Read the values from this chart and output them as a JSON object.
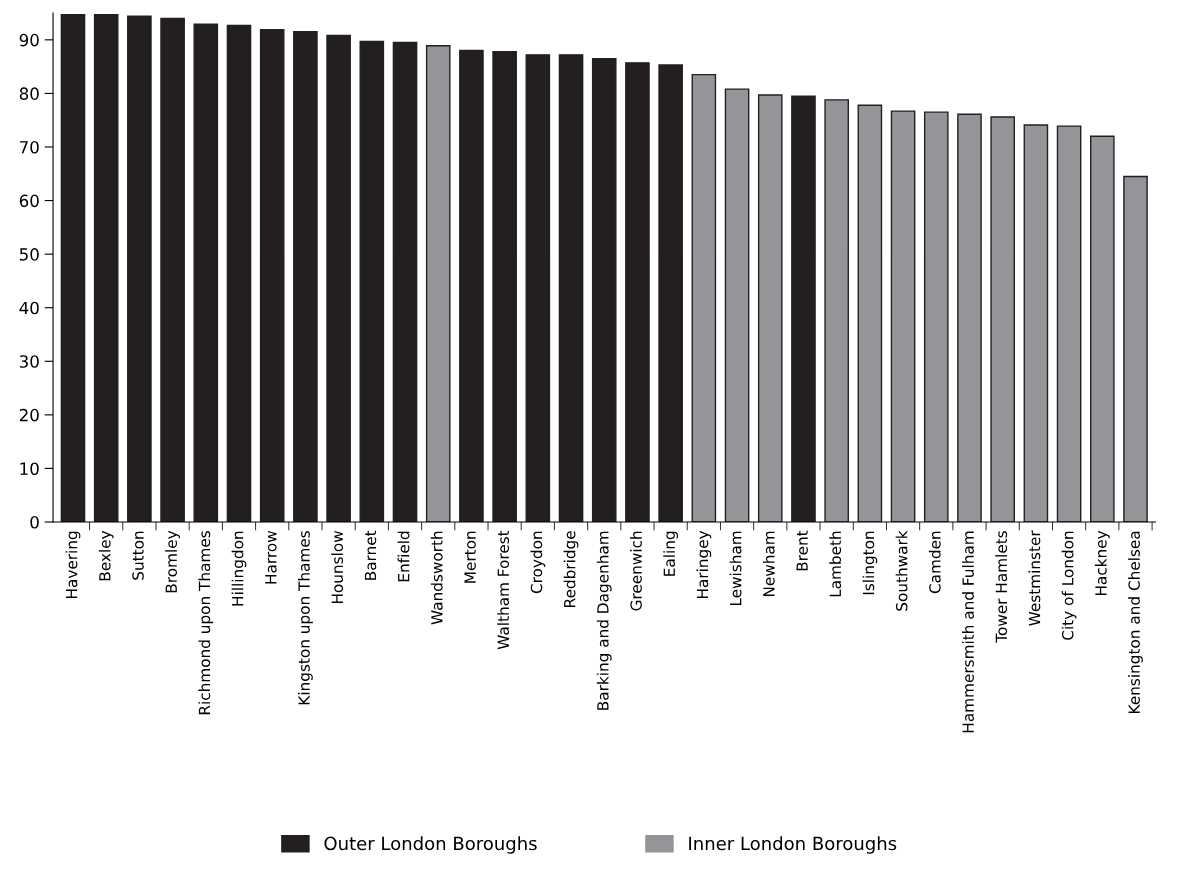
{
  "chart_data": {
    "type": "bar",
    "stacked": true,
    "categories": [
      "Havering",
      "Bexley",
      "Sutton",
      "Bromley",
      "Richmond upon Thames",
      "Hillingdon",
      "Harrow",
      "Kingston upon Thames",
      "Hounslow",
      "Barnet",
      "Enfield",
      "Wandsworth",
      "Merton",
      "Waltham Forest",
      "Croydon",
      "Redbridge",
      "Barking and Dagenham",
      "Greenwich",
      "Ealing",
      "Haringey",
      "Lewisham",
      "Newham",
      "Brent",
      "Lambeth",
      "Islington",
      "Southwark",
      "Camden",
      "Hammersmith and Fulham",
      "Tower Hamlets",
      "Westminster",
      "City of London",
      "Hackney",
      "Kensington and Chelsea"
    ],
    "series": [
      {
        "name": "Outer London Boroughs",
        "color": "#231f20",
        "values": [
          94.7,
          94.7,
          94.4,
          94.0,
          92.9,
          92.7,
          91.9,
          91.5,
          90.8,
          89.7,
          89.5,
          null,
          88.0,
          87.8,
          87.2,
          87.2,
          86.5,
          85.7,
          85.3,
          null,
          null,
          null,
          79.5,
          null,
          null,
          null,
          null,
          null,
          null,
          null,
          null,
          null,
          null
        ]
      },
      {
        "name": "Inner London Boroughs",
        "color": "#939598",
        "values": [
          null,
          null,
          null,
          null,
          null,
          null,
          null,
          null,
          null,
          null,
          null,
          88.9,
          null,
          null,
          null,
          null,
          null,
          null,
          null,
          83.5,
          80.8,
          79.7,
          null,
          78.8,
          77.8,
          76.7,
          76.5,
          76.1,
          75.6,
          74.1,
          73.9,
          72.0,
          64.5
        ]
      }
    ],
    "ylim": [
      0,
      95
    ],
    "yticks": [
      0,
      10,
      20,
      30,
      40,
      50,
      60,
      70,
      80,
      90
    ],
    "grid": false,
    "legend": "bottom"
  }
}
